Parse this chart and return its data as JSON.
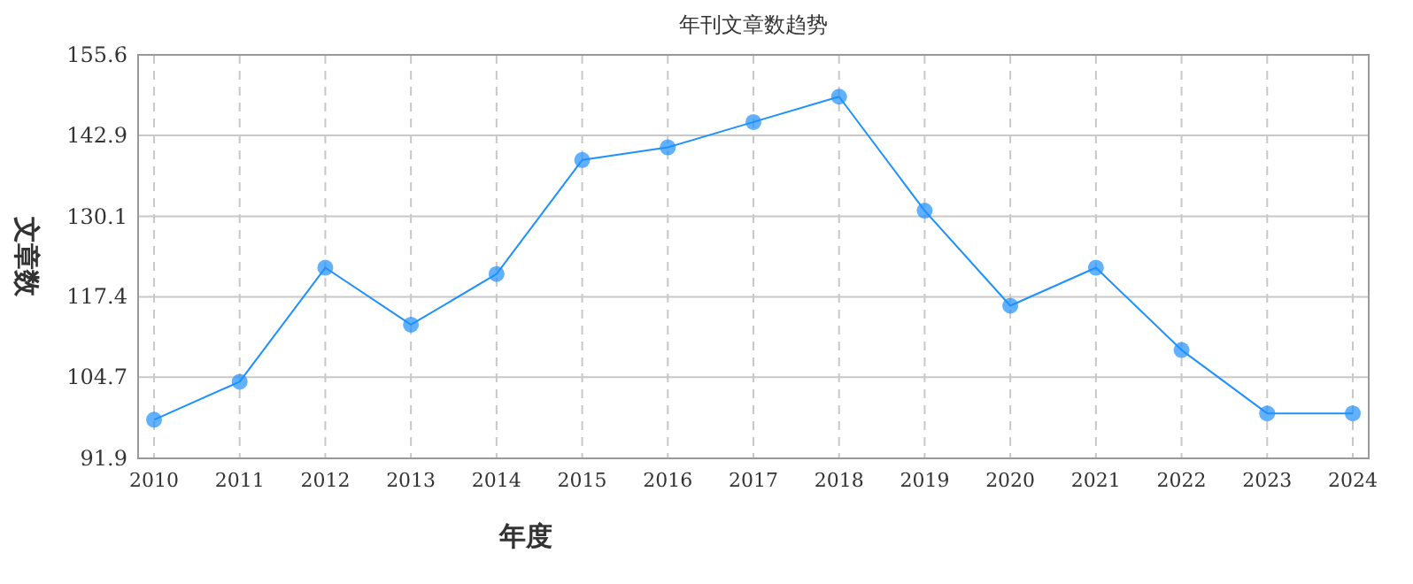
{
  "chart_data": {
    "type": "line",
    "title": "年刊文章数趋势",
    "xlabel": "年度",
    "ylabel": "文章数",
    "categories": [
      "2010",
      "2011",
      "2012",
      "2013",
      "2014",
      "2015",
      "2016",
      "2017",
      "2018",
      "2019",
      "2020",
      "2021",
      "2022",
      "2023",
      "2024"
    ],
    "series": [
      {
        "color": "#1e90ff",
        "values": [
          98,
          104,
          122,
          113,
          121,
          139,
          141,
          145,
          149,
          131,
          116,
          122,
          109,
          99,
          99
        ]
      }
    ],
    "ylim": [
      91.9,
      155.6
    ],
    "yticks": [
      91.9,
      104.7,
      117.4,
      130.1,
      142.9,
      155.6
    ],
    "grid": true,
    "marker": "circle"
  }
}
